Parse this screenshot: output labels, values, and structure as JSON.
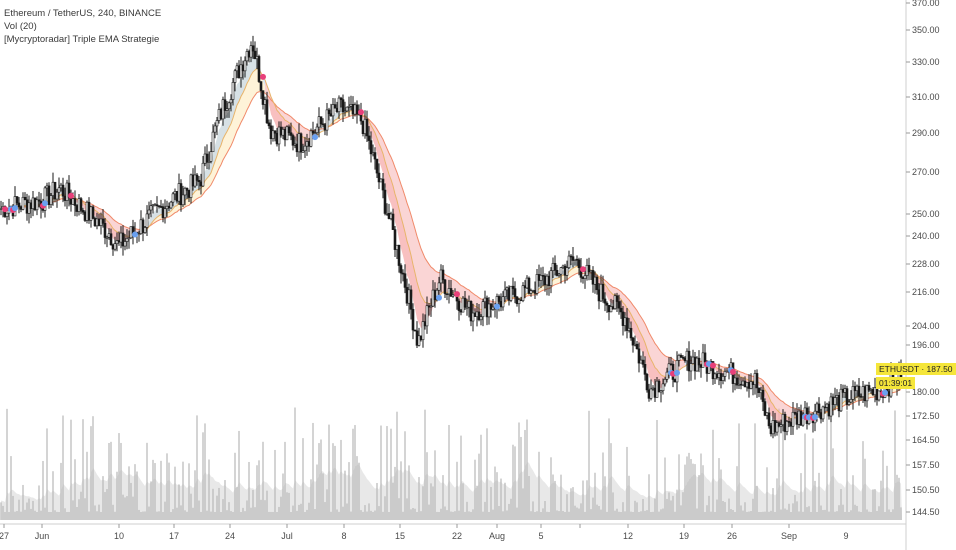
{
  "legend": {
    "symbol_line": "Ethereum / TetherUS, 240, BINANCE",
    "volume_line": "Vol (20)",
    "indicator_line": "[Mycryptoradar] Triple EMA Strategie"
  },
  "price_tag": {
    "label": "ETHUSDT · 187.50",
    "countdown": "01:39:01",
    "color": "#f5e63a"
  },
  "colors": {
    "candle": "#1a1a1a",
    "ema_slow": "#f08a6a",
    "ema_mid": "#e8b46a",
    "fill_bear": "#f6b2b2",
    "fill_bull": "#bcd6ee",
    "fill_warm": "#fde9b8",
    "volume": "#b8b8b8",
    "volume_ma": "#dedede",
    "dot_bear": "#e8407a",
    "dot_bull": "#6aa0f0",
    "dot_cross": "#d8c020"
  },
  "chart_data": {
    "type": "candlestick",
    "title": "Ethereum / TetherUS, 240, BINANCE",
    "y_axis_ticks": [
      "370.00",
      "350.00",
      "330.00",
      "310.00",
      "290.00",
      "270.00",
      "250.00",
      "240.00",
      "228.00",
      "216.00",
      "204.00",
      "196.00",
      "180.00",
      "172.50",
      "164.50",
      "157.50",
      "150.50",
      "144.50"
    ],
    "x_axis_ticks": [
      "27",
      "Jun",
      "10",
      "17",
      "24",
      "Jul",
      "8",
      "15",
      "22",
      "Aug",
      "5",
      "12",
      "19",
      "26",
      "Sep",
      "9"
    ],
    "ylim": [
      140,
      372
    ],
    "y_scale": "log",
    "grid": false,
    "close_path": [
      {
        "x": "27",
        "y": 258
      },
      {
        "x": "Jun",
        "y": 262
      },
      {
        "x": "Jun",
        "y": 268
      },
      {
        "x": "10",
        "y": 246
      },
      {
        "x": "10",
        "y": 240
      },
      {
        "x": "17",
        "y": 262
      },
      {
        "x": "17",
        "y": 272
      },
      {
        "x": "24",
        "y": 308
      },
      {
        "x": "24",
        "y": 355
      },
      {
        "x": "Jul",
        "y": 300
      },
      {
        "x": "Jul",
        "y": 292
      },
      {
        "x": "8",
        "y": 312
      },
      {
        "x": "8",
        "y": 305
      },
      {
        "x": "15",
        "y": 270
      },
      {
        "x": "15",
        "y": 200
      },
      {
        "x": "22",
        "y": 226
      },
      {
        "x": "22",
        "y": 212
      },
      {
        "x": "Aug",
        "y": 218
      },
      {
        "x": "Aug",
        "y": 224
      },
      {
        "x": "5",
        "y": 234
      },
      {
        "x": "5",
        "y": 220
      },
      {
        "x": "12",
        "y": 210
      },
      {
        "x": "12",
        "y": 183
      },
      {
        "x": "19",
        "y": 194
      },
      {
        "x": "19",
        "y": 190
      },
      {
        "x": "26",
        "y": 186
      },
      {
        "x": "26",
        "y": 170
      },
      {
        "x": "Sep",
        "y": 174
      },
      {
        "x": "Sep",
        "y": 178
      },
      {
        "x": "9",
        "y": 181
      },
      {
        "x": "9",
        "y": 183
      },
      {
        "x": "9",
        "y": 187.5
      }
    ],
    "last_price": 187.5,
    "volume_series": "Vol (20)",
    "indicator": "[Mycryptoradar] Triple EMA Strategie"
  }
}
